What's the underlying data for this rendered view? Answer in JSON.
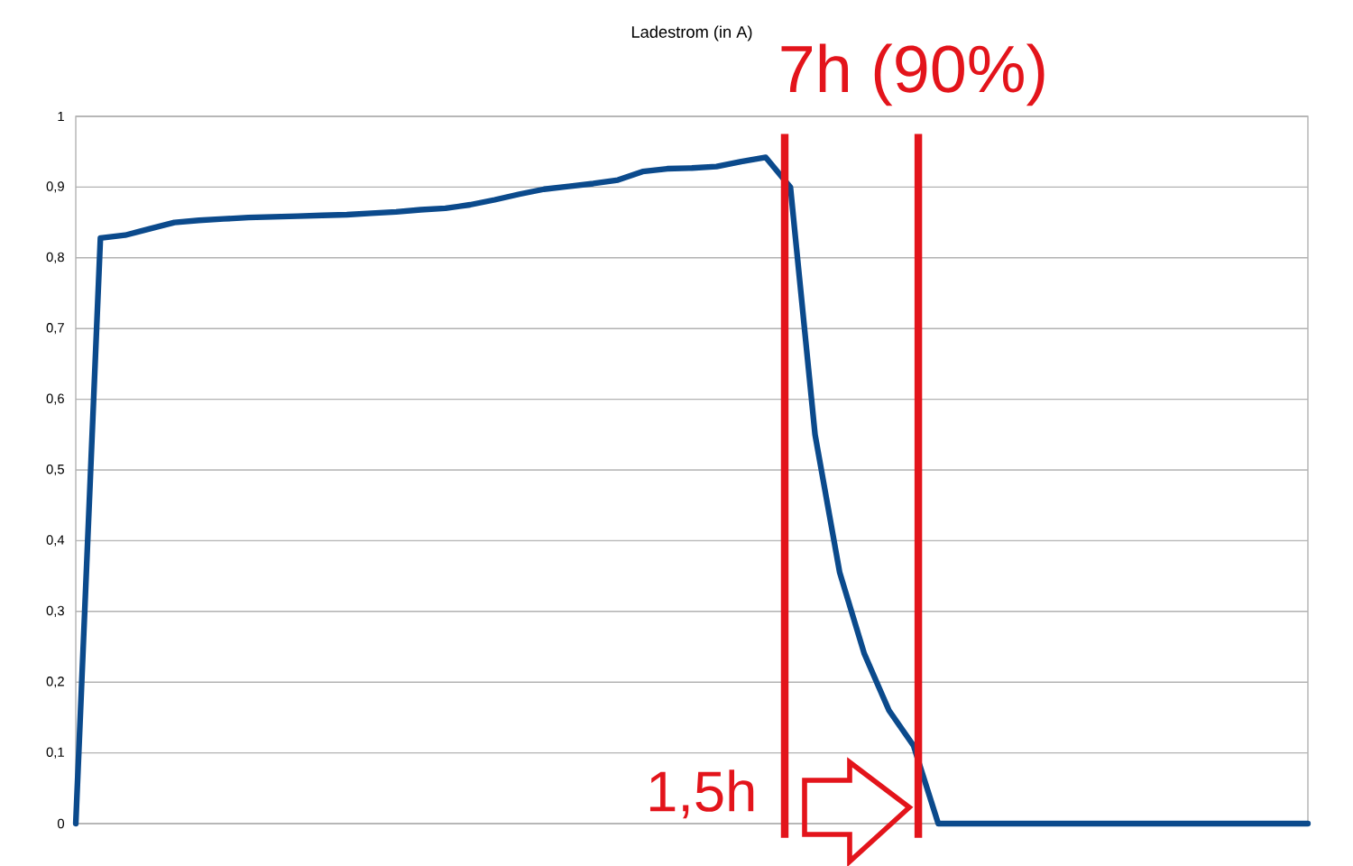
{
  "chart_data": {
    "type": "line",
    "title": "Ladestrom (in A)",
    "categories": [
      null,
      null,
      null,
      null,
      null,
      null,
      null,
      null,
      null,
      null,
      null,
      null,
      null,
      null,
      null,
      null,
      null,
      null,
      null,
      null,
      null,
      null,
      null,
      null,
      null,
      null,
      null,
      null,
      null,
      null,
      null,
      null,
      null,
      null,
      null,
      null,
      null,
      null,
      null,
      null,
      null,
      null,
      null,
      null,
      null,
      null,
      null,
      null,
      null,
      null,
      null
    ],
    "series": [
      {
        "color": "#0b4a8c",
        "values": [
          0,
          0.828,
          0.832,
          0.841,
          0.85,
          0.853,
          0.855,
          0.857,
          0.858,
          0.859,
          0.86,
          0.861,
          0.863,
          0.865,
          0.868,
          0.87,
          0.875,
          0.882,
          0.89,
          0.897,
          0.901,
          0.905,
          0.91,
          0.922,
          0.926,
          0.927,
          0.929,
          0.936,
          0.942,
          0.9,
          0.55,
          0.355,
          0.24,
          0.16,
          0.11,
          0,
          0,
          0,
          0,
          0,
          0,
          0,
          0,
          0,
          0,
          0,
          0,
          0,
          0,
          0,
          0
        ]
      }
    ],
    "ylim": [
      0,
      1
    ],
    "yticks": [
      {
        "value": 0,
        "label": "0"
      },
      {
        "value": 0.1,
        "label": "0,1"
      },
      {
        "value": 0.2,
        "label": "0,2"
      },
      {
        "value": 0.3,
        "label": "0,3"
      },
      {
        "value": 0.4,
        "label": "0,4"
      },
      {
        "value": 0.5,
        "label": "0,5"
      },
      {
        "value": 0.6,
        "label": "0,6"
      },
      {
        "value": 0.7,
        "label": "0,7"
      },
      {
        "value": 0.8,
        "label": "0,8"
      },
      {
        "value": 0.9,
        "label": "0,9"
      },
      {
        "value": 1,
        "label": "1"
      }
    ],
    "grid": "y",
    "marker": "none",
    "line_style": "solid",
    "annotations": [
      "7h (90%)",
      "1,5h"
    ]
  }
}
